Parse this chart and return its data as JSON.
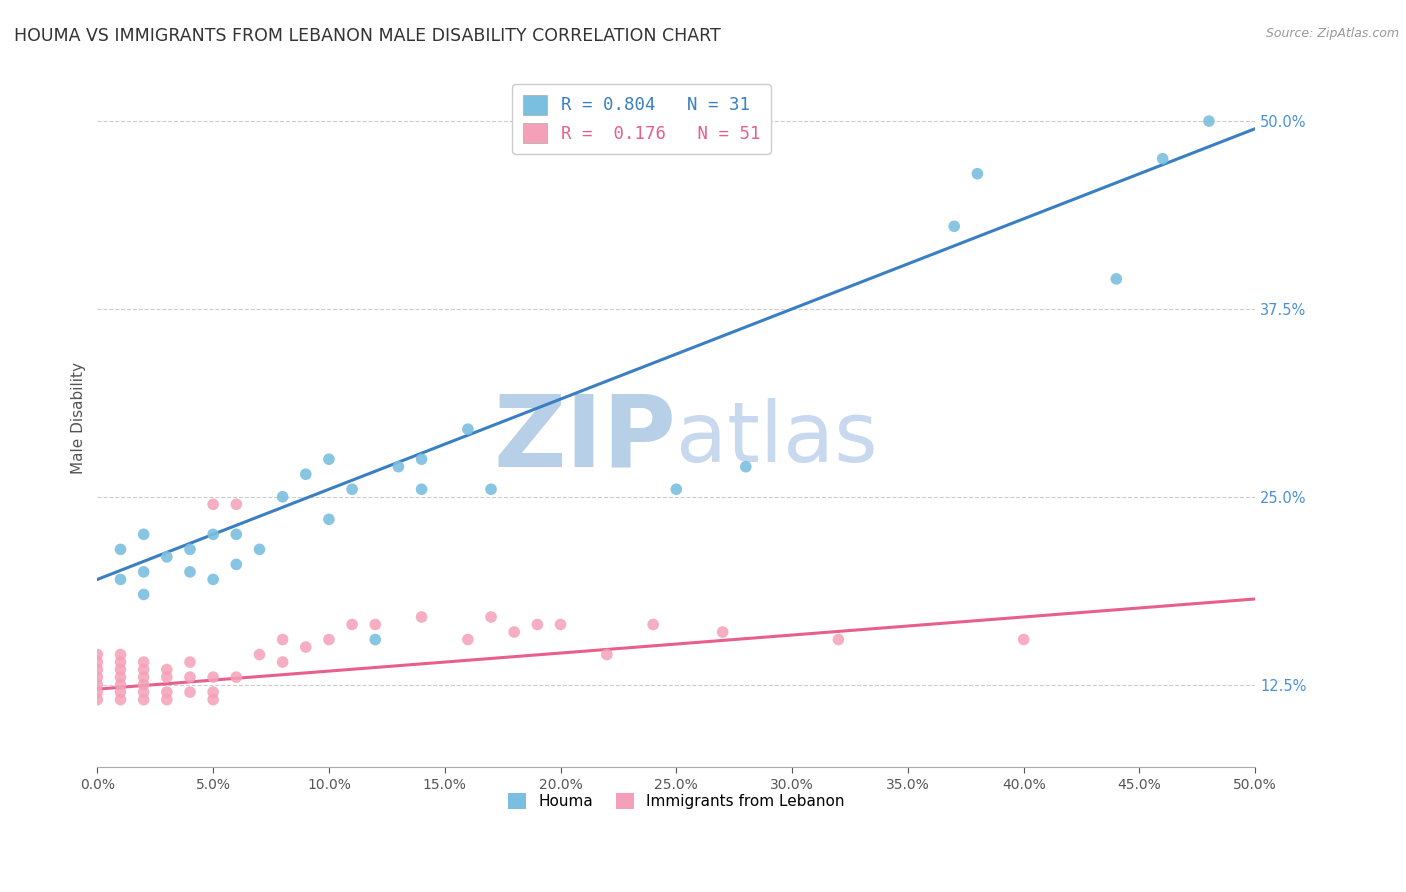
{
  "title": "HOUMA VS IMMIGRANTS FROM LEBANON MALE DISABILITY CORRELATION CHART",
  "source": "Source: ZipAtlas.com",
  "ylabel": "Male Disability",
  "xlim": [
    0.0,
    0.5
  ],
  "ylim": [
    0.07,
    0.535
  ],
  "ytick_right_values": [
    0.125,
    0.25,
    0.375,
    0.5
  ],
  "xtick_values": [
    0.0,
    0.05,
    0.1,
    0.15,
    0.2,
    0.25,
    0.3,
    0.35,
    0.4,
    0.45,
    0.5
  ],
  "houma_color": "#7bbfe0",
  "lebanon_color": "#f4a0b8",
  "houma_R": 0.804,
  "houma_N": 31,
  "lebanon_R": 0.176,
  "lebanon_N": 51,
  "houma_x": [
    0.01,
    0.01,
    0.02,
    0.02,
    0.02,
    0.03,
    0.04,
    0.04,
    0.05,
    0.05,
    0.06,
    0.06,
    0.07,
    0.08,
    0.09,
    0.1,
    0.1,
    0.11,
    0.12,
    0.13,
    0.14,
    0.14,
    0.16,
    0.17,
    0.25,
    0.28,
    0.37,
    0.38,
    0.44,
    0.46,
    0.48
  ],
  "houma_y": [
    0.195,
    0.215,
    0.185,
    0.2,
    0.225,
    0.21,
    0.2,
    0.215,
    0.195,
    0.225,
    0.205,
    0.225,
    0.215,
    0.25,
    0.265,
    0.235,
    0.275,
    0.255,
    0.155,
    0.27,
    0.255,
    0.275,
    0.295,
    0.255,
    0.255,
    0.27,
    0.43,
    0.465,
    0.395,
    0.475,
    0.5
  ],
  "lebanon_x": [
    0.0,
    0.0,
    0.0,
    0.0,
    0.0,
    0.0,
    0.0,
    0.01,
    0.01,
    0.01,
    0.01,
    0.01,
    0.01,
    0.01,
    0.02,
    0.02,
    0.02,
    0.02,
    0.02,
    0.02,
    0.03,
    0.03,
    0.03,
    0.03,
    0.04,
    0.04,
    0.04,
    0.05,
    0.05,
    0.05,
    0.05,
    0.06,
    0.06,
    0.07,
    0.08,
    0.08,
    0.09,
    0.1,
    0.11,
    0.12,
    0.14,
    0.16,
    0.17,
    0.18,
    0.19,
    0.2,
    0.22,
    0.24,
    0.27,
    0.32,
    0.4
  ],
  "lebanon_y": [
    0.115,
    0.12,
    0.125,
    0.13,
    0.135,
    0.14,
    0.145,
    0.115,
    0.12,
    0.125,
    0.13,
    0.135,
    0.14,
    0.145,
    0.115,
    0.12,
    0.125,
    0.13,
    0.135,
    0.14,
    0.115,
    0.12,
    0.13,
    0.135,
    0.12,
    0.13,
    0.14,
    0.115,
    0.12,
    0.13,
    0.245,
    0.13,
    0.245,
    0.145,
    0.14,
    0.155,
    0.15,
    0.155,
    0.165,
    0.165,
    0.17,
    0.155,
    0.17,
    0.16,
    0.165,
    0.165,
    0.145,
    0.165,
    0.16,
    0.155,
    0.155
  ],
  "grid_color": "#cccccc",
  "bg_color": "#ffffff",
  "houma_line_color": "#3a7fc1",
  "lebanon_line_color": "#e8608a",
  "title_color": "#333333",
  "axis_label_color": "#555555",
  "ytick_color": "#4a90d9",
  "xtick_color": "#555555"
}
